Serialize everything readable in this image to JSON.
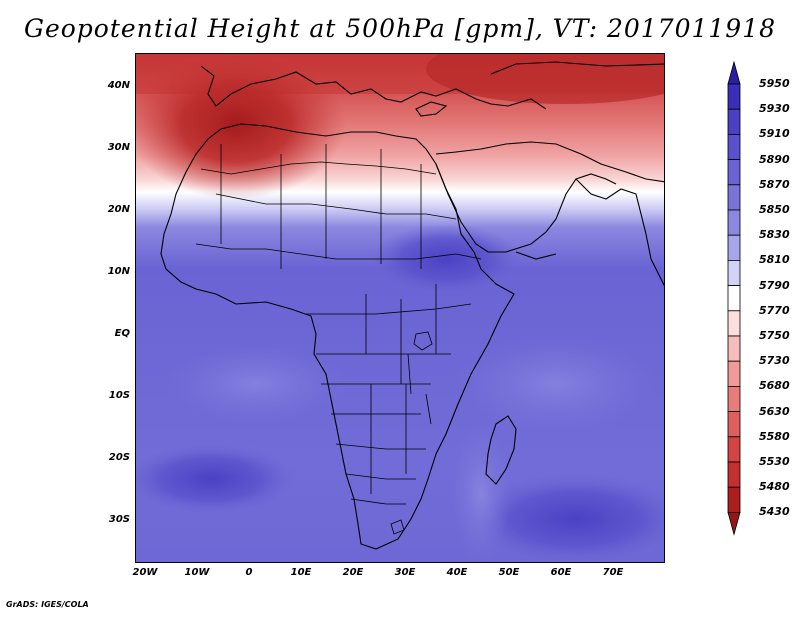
{
  "title": "Geopotential Height at 500hPa [gpm], VT: 2017011918",
  "credit": "GrADS: IGES/COLA",
  "lat_ticks": [
    "40N",
    "30N",
    "20N",
    "10N",
    "EQ",
    "10S",
    "20S",
    "30S"
  ],
  "lon_ticks": [
    "20W",
    "10W",
    "0",
    "10E",
    "20E",
    "30E",
    "40E",
    "50E",
    "60E",
    "70E"
  ],
  "colorbar": {
    "levels": [
      "5950",
      "5930",
      "5910",
      "5890",
      "5870",
      "5850",
      "5830",
      "5810",
      "5790",
      "5770",
      "5750",
      "5730",
      "5680",
      "5630",
      "5580",
      "5530",
      "5480",
      "5430"
    ],
    "colors": [
      "#2a1fa0",
      "#3a2fb8",
      "#4a40c4",
      "#5a52cc",
      "#6a63d4",
      "#7a74da",
      "#8c88e0",
      "#a8a6ea",
      "#d2d2f6",
      "#ffffff",
      "#fcdede",
      "#f7bcbc",
      "#f09a9a",
      "#e87c7c",
      "#df5f5f",
      "#d44444",
      "#c42f2f",
      "#ad1f1f",
      "#951616"
    ]
  },
  "field_colors": {
    "deep_red": "#a81c1c",
    "red": "#d04848",
    "light_red": "#ee9a9a",
    "pale": "#f8d6d6",
    "white": "#ffffff",
    "pale_blue": "#c8c8f2",
    "blue": "#6c66d6",
    "mid_blue": "#5a52cc",
    "deep_blue": "#4038bc",
    "lightblue": "#7e78dc"
  }
}
